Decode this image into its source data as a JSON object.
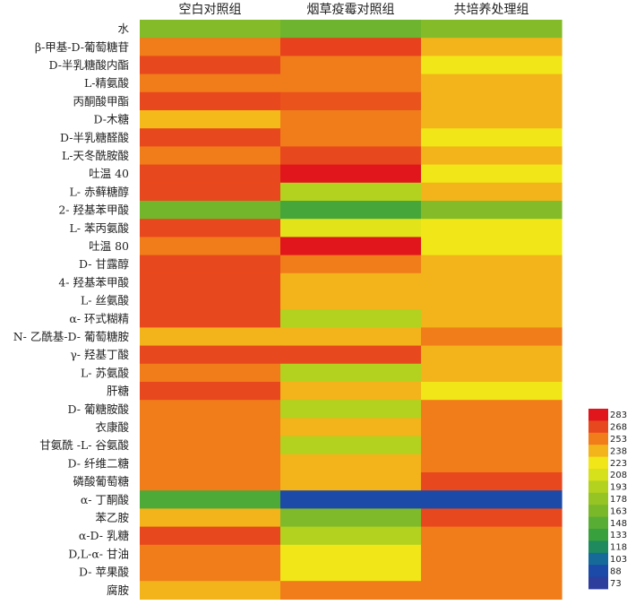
{
  "chart_data": {
    "type": "heatmap",
    "columns": [
      "空白对照组",
      "烟草疫霉对照组",
      "共培养处理组"
    ],
    "rows": [
      "水",
      "β-甲基-D-葡萄糖苷",
      "D-半乳糖酸内酯",
      "L-精氨酸",
      "丙酮酸甲酯",
      "D-木糖",
      "D-半乳糖醛酸",
      "L-天冬酰胺酸",
      "吐温 40",
      "L- 赤藓糖醇",
      "2- 羟基苯甲酸",
      "L- 苯丙氨酸",
      "吐温 80",
      "D- 甘露醇",
      "4- 羟基苯甲酸",
      "L- 丝氨酸",
      "α- 环式糊精",
      "N- 乙酰基-D- 葡萄糖胺",
      "γ- 羟基丁酸",
      "L- 苏氨酸",
      "肝糖",
      "D- 葡糖胺酸",
      "衣康酸",
      "甘氨酰 -L- 谷氨酸",
      "D- 纤维二糖",
      "磷酸葡萄糖",
      "α- 丁酮酸",
      "苯乙胺",
      "α-D- 乳糖",
      "D,L-α- 甘油",
      "D- 苹果酸",
      "腐胺"
    ],
    "values": [
      [
        168,
        158,
        168
      ],
      [
        253,
        270,
        238
      ],
      [
        268,
        253,
        223
      ],
      [
        253,
        253,
        238
      ],
      [
        268,
        265,
        238
      ],
      [
        236,
        253,
        238
      ],
      [
        268,
        253,
        223
      ],
      [
        253,
        268,
        238
      ],
      [
        268,
        283,
        223
      ],
      [
        268,
        193,
        238
      ],
      [
        160,
        140,
        168
      ],
      [
        268,
        215,
        223
      ],
      [
        253,
        283,
        223
      ],
      [
        268,
        253,
        238
      ],
      [
        268,
        238,
        238
      ],
      [
        268,
        238,
        238
      ],
      [
        268,
        193,
        238
      ],
      [
        238,
        238,
        253
      ],
      [
        268,
        268,
        238
      ],
      [
        253,
        193,
        238
      ],
      [
        268,
        238,
        223
      ],
      [
        253,
        193,
        253
      ],
      [
        253,
        238,
        253
      ],
      [
        253,
        193,
        253
      ],
      [
        253,
        238,
        253
      ],
      [
        253,
        238,
        268
      ],
      [
        143,
        88,
        88
      ],
      [
        238,
        165,
        268
      ],
      [
        268,
        193,
        253
      ],
      [
        253,
        223,
        253
      ],
      [
        253,
        223,
        253
      ],
      [
        238,
        253,
        253
      ]
    ],
    "legend": {
      "ticks": [
        283,
        268,
        253,
        238,
        223,
        208,
        193,
        178,
        163,
        148,
        133,
        118,
        103,
        88,
        73
      ],
      "colors": [
        "#e0161c",
        "#e8481d",
        "#f07d1a",
        "#f3b31a",
        "#f1e618",
        "#d6e01b",
        "#b2d21f",
        "#96c424",
        "#7ab82a",
        "#58ad35",
        "#38a03d",
        "#1e8a5e",
        "#156a99",
        "#1b4aa8",
        "#2d3e9c"
      ]
    }
  }
}
